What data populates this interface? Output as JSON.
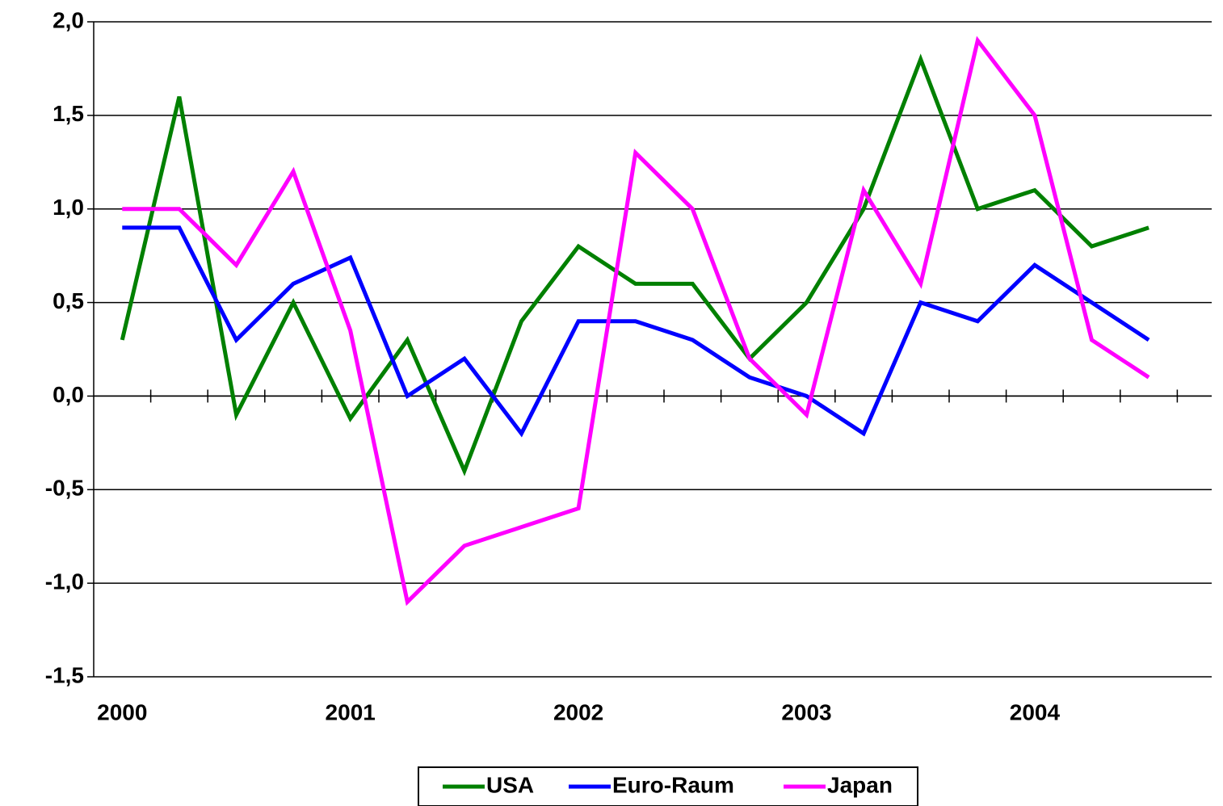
{
  "chart_data": {
    "type": "line",
    "categories": [
      "2000",
      null,
      null,
      null,
      "2001",
      null,
      null,
      null,
      "2002",
      null,
      null,
      null,
      "2003",
      null,
      null,
      null,
      "2004",
      null,
      null
    ],
    "series": [
      {
        "name": "USA",
        "color": "#008000",
        "values": [
          0.3,
          1.6,
          -0.1,
          0.5,
          -0.12,
          0.3,
          -0.4,
          0.4,
          0.8,
          0.6,
          0.6,
          0.2,
          0.5,
          1.0,
          1.8,
          1.0,
          1.1,
          0.8,
          0.9
        ]
      },
      {
        "name": "Euro-Raum",
        "color": "#0000ff",
        "values": [
          0.9,
          0.9,
          0.3,
          0.6,
          0.74,
          0.0,
          0.2,
          -0.2,
          0.4,
          0.4,
          0.3,
          0.1,
          0.0,
          -0.2,
          0.5,
          0.4,
          0.7,
          0.5,
          0.3
        ]
      },
      {
        "name": "Japan",
        "color": "#ff00ff",
        "values": [
          1.0,
          1.0,
          0.7,
          1.2,
          0.35,
          -1.1,
          -0.8,
          -0.7,
          -0.6,
          1.3,
          1.0,
          0.2,
          -0.1,
          1.1,
          0.6,
          1.9,
          1.5,
          0.3,
          0.1
        ]
      }
    ],
    "ylim": [
      -1.5,
      2.0
    ],
    "yticks": [
      {
        "value": -1.5,
        "label": "-1,5"
      },
      {
        "value": -1.0,
        "label": "-1,0"
      },
      {
        "value": -0.5,
        "label": "-0,5"
      },
      {
        "value": 0.0,
        "label": "0,0"
      },
      {
        "value": 0.5,
        "label": "0,5"
      },
      {
        "value": 1.0,
        "label": "1,0"
      },
      {
        "value": 1.5,
        "label": "1,5"
      },
      {
        "value": 2.0,
        "label": "2,0"
      }
    ],
    "grid": true,
    "legend": "bottom"
  }
}
